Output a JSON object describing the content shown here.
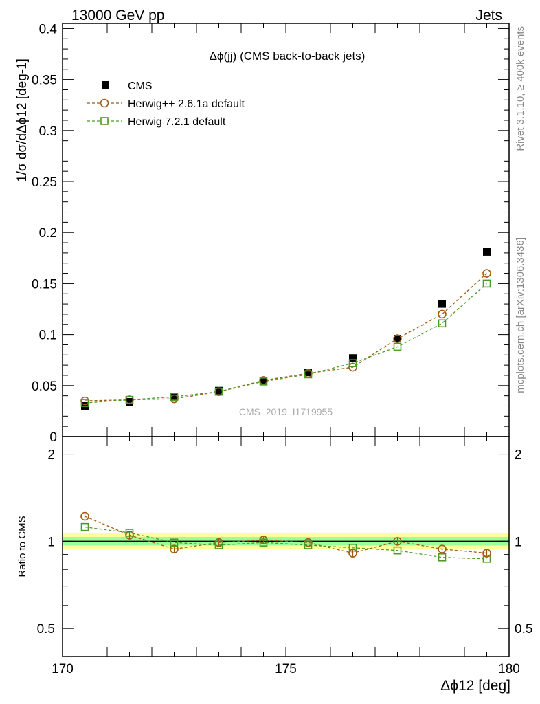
{
  "header": {
    "left": "13000 GeV pp",
    "right": "Jets"
  },
  "side_labels": {
    "rivet": "Rivet 3.1.10, ≥ 400k events",
    "mcplots": "mcplots.cern.ch [arXiv:1306.3436]"
  },
  "chart_data": [
    {
      "type": "scatter",
      "title": "Δϕ(jj) (CMS back-to-back jets)",
      "watermark": "CMS_2019_I1719955",
      "ylabel": "1/σ dσ/dΔϕ12 [deg-1]",
      "ylim": [
        0,
        0.405
      ],
      "yticks": [
        0,
        0.05,
        0.1,
        0.15,
        0.2,
        0.25,
        0.3,
        0.35,
        0.4
      ],
      "ytick_labels": [
        "0",
        "0.05",
        "0.1",
        "0.15",
        "0.2",
        "0.25",
        "0.3",
        "0.35",
        "0.4"
      ],
      "xlim": [
        170,
        180
      ],
      "x": [
        170.5,
        171.5,
        172.5,
        173.5,
        174.5,
        175.5,
        176.5,
        177.5,
        178.5,
        179.5
      ],
      "legend_position": "top-left",
      "series": [
        {
          "name": "CMS",
          "marker": "filled-square",
          "color": "#000000",
          "values": [
            0.03,
            0.034,
            0.039,
            0.045,
            0.054,
            0.063,
            0.077,
            0.096,
            0.13,
            0.181
          ]
        },
        {
          "name": "Herwig++ 2.6.1a default",
          "marker": "open-circle",
          "color": "#a05a14",
          "values": [
            0.035,
            0.036,
            0.037,
            0.044,
            0.055,
            0.062,
            0.068,
            0.096,
            0.12,
            0.16
          ]
        },
        {
          "name": "Herwig 7.2.1 default",
          "marker": "open-square",
          "color": "#4c9a26",
          "values": [
            0.033,
            0.036,
            0.039,
            0.044,
            0.054,
            0.061,
            0.072,
            0.088,
            0.111,
            0.15
          ]
        }
      ]
    },
    {
      "type": "scatter",
      "ylabel": "Ratio to CMS",
      "xlabel": "Δϕ12 [deg]",
      "ylim": [
        0.4,
        2.3
      ],
      "log_y": true,
      "yticks": [
        0.5,
        1,
        2
      ],
      "ytick_labels": [
        "0.5",
        "1",
        "2"
      ],
      "xlim": [
        170,
        180
      ],
      "xticks": [
        170,
        175,
        180
      ],
      "xtick_labels": [
        "170",
        "175",
        "180"
      ],
      "x": [
        170.5,
        171.5,
        172.5,
        173.5,
        174.5,
        175.5,
        176.5,
        177.5,
        178.5,
        179.5
      ],
      "band_colors": {
        "outer": "#ffff99",
        "inner": "#99ff99"
      },
      "series": [
        {
          "name": "Herwig++ 2.6.1a default",
          "color": "#a05a14",
          "values": [
            1.22,
            1.05,
            0.94,
            0.99,
            1.01,
            0.99,
            0.91,
            1.0,
            0.94,
            0.91
          ]
        },
        {
          "name": "Herwig 7.2.1 default",
          "color": "#4c9a26",
          "values": [
            1.12,
            1.07,
            0.99,
            0.97,
            0.99,
            0.97,
            0.95,
            0.93,
            0.88,
            0.87
          ]
        }
      ]
    }
  ]
}
